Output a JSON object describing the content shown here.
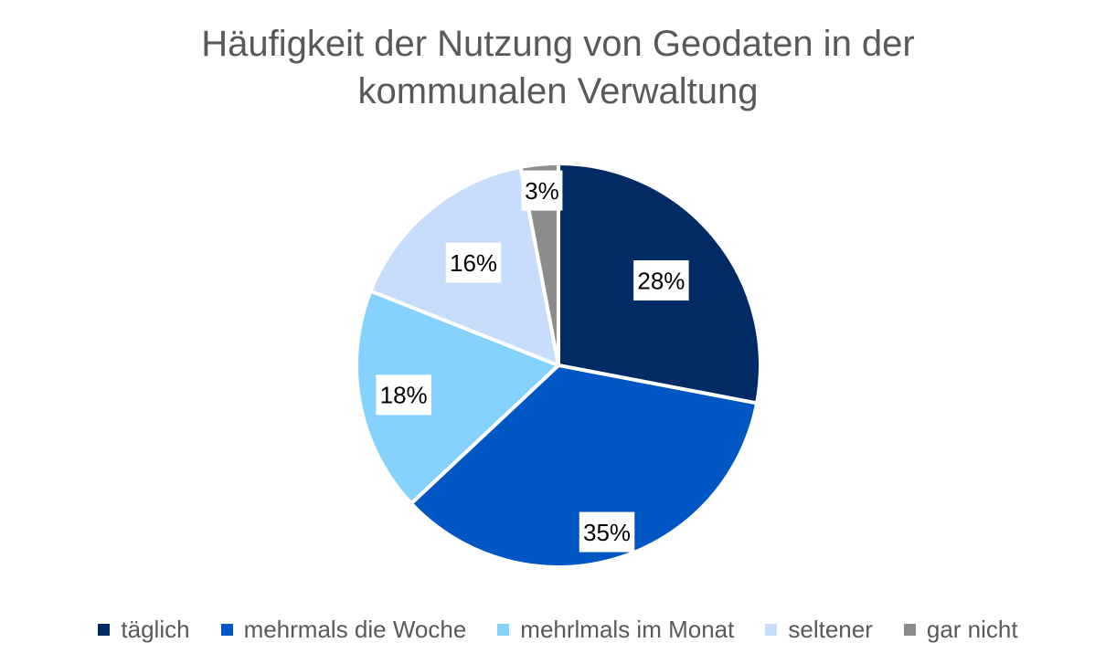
{
  "chart_data": {
    "type": "pie",
    "title_lines": [
      "Häufigkeit der Nutzung von Geodaten in der",
      "kommunalen Verwaltung"
    ],
    "categories": [
      "täglich",
      "mehrmals die Woche",
      "mehrlmals im Monat",
      "seltener",
      "gar nicht"
    ],
    "values": [
      28,
      35,
      18,
      16,
      3
    ],
    "data_labels": [
      "28%",
      "35%",
      "18%",
      "16%",
      "3%"
    ],
    "colors": [
      "#002B64",
      "#0056C2",
      "#85D2FF",
      "#C8DCFC",
      "#8C8C8C"
    ],
    "start_angle_deg": 0,
    "direction": "clockwise",
    "legend_position": "bottom"
  }
}
